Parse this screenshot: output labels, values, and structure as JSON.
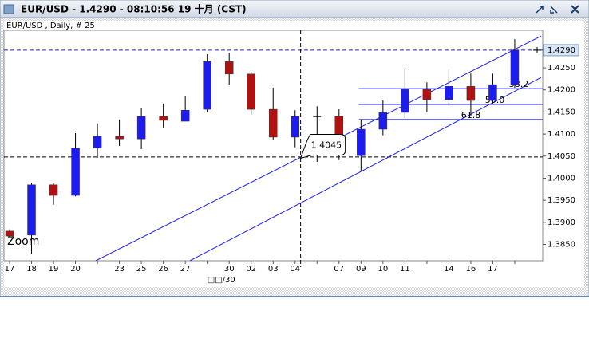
{
  "window_title": "EUR/USD - 1.4290 - 08:10:56 19 十月 (CST)",
  "chart_data": {
    "type": "candlestick",
    "title": "EUR/USD , Daily, # 25",
    "categories": [
      "17",
      "18",
      "19",
      "20",
      null,
      "23",
      "25",
      "26",
      "27",
      null,
      "30",
      "02",
      "03",
      "04",
      null,
      "07",
      "09",
      "10",
      "11",
      null,
      "14",
      "16",
      "17",
      null
    ],
    "x_sublabel": "□□/30",
    "open": [
      1.388,
      1.3871,
      1.3985,
      1.3961,
      1.4068,
      1.4095,
      1.4089,
      1.414,
      1.4129,
      1.4156,
      1.4264,
      1.4236,
      1.4156,
      1.4093,
      1.414,
      1.414,
      1.4051,
      1.4111,
      1.4149,
      1.4201,
      1.4178,
      1.4208,
      1.4176,
      1.4212
    ],
    "high": [
      1.3884,
      1.399,
      1.3988,
      1.4102,
      1.4124,
      1.4133,
      1.4158,
      1.4169,
      1.4187,
      1.4281,
      1.4284,
      1.4241,
      1.4205,
      1.4154,
      1.4163,
      1.4156,
      1.4133,
      1.4176,
      1.4246,
      1.4217,
      1.4245,
      1.4237,
      1.4237,
      1.4315
    ],
    "low": [
      1.3866,
      1.3829,
      1.394,
      1.3959,
      1.4046,
      1.4073,
      1.4066,
      1.4115,
      1.4129,
      1.4149,
      1.4212,
      1.4144,
      1.4086,
      1.407,
      1.4037,
      1.4041,
      1.4017,
      1.4097,
      1.4136,
      1.4149,
      1.4169,
      1.4142,
      1.4169,
      1.4205
    ],
    "close": [
      1.3869,
      1.3985,
      1.3961,
      1.4068,
      1.4095,
      1.4089,
      1.414,
      1.4131,
      1.4154,
      1.4264,
      1.4236,
      1.4156,
      1.4093,
      1.414,
      1.414,
      1.4053,
      1.4111,
      1.4149,
      1.4201,
      1.4178,
      1.4208,
      1.4176,
      1.4212,
      1.429
    ],
    "up_color": "#1c1cf0",
    "down_color": "#b01212",
    "ylim": [
      1.3813,
      1.4335
    ],
    "yticks": [
      {
        "value": 1.385,
        "label": "1.3850"
      },
      {
        "value": 1.39,
        "label": "1.3900"
      },
      {
        "value": 1.395,
        "label": "1.3950"
      },
      {
        "value": 1.4,
        "label": "1.4000"
      },
      {
        "value": 1.405,
        "label": "1.4050"
      },
      {
        "value": 1.41,
        "label": "1.4100"
      },
      {
        "value": 1.415,
        "label": "1.4150"
      },
      {
        "value": 1.42,
        "label": "1.4200"
      },
      {
        "value": 1.425,
        "label": "1.4250"
      }
    ],
    "last_price": {
      "value": 1.429,
      "label": "1.4290"
    },
    "hlines": [
      1.429,
      1.4048
    ],
    "cursor_x": 13.25,
    "price_bubble": {
      "value": 1.4045,
      "label": "1.4045"
    },
    "channel": [
      {
        "x": [
          3.92,
          24.2
        ],
        "y": [
          1.3813,
          1.4322
        ]
      },
      {
        "x": [
          8.21,
          24.2
        ],
        "y": [
          1.3813,
          1.4228
        ]
      }
    ],
    "fib_start": 15.9,
    "fib_levels": [
      {
        "value": 1.4203,
        "label": "38.2"
      },
      {
        "value": 1.4167,
        "label": "50.0"
      },
      {
        "value": 1.4133,
        "label": "61.8"
      }
    ],
    "annotation": "Zoom"
  }
}
